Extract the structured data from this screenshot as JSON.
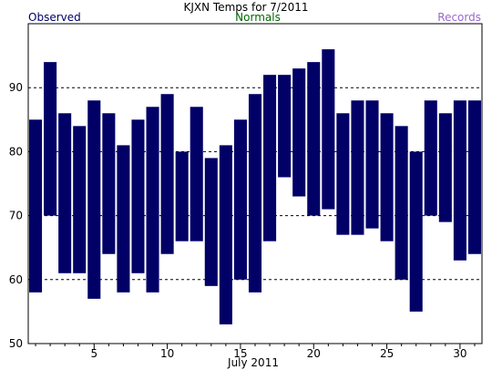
{
  "chart_data": {
    "type": "bar",
    "title": "KJXN Temps for 7/2011",
    "legend": {
      "observed": "Observed",
      "normals": "Normals",
      "records": "Records",
      "placement": "top"
    },
    "xlabel": "July 2011",
    "x_ticks": [
      5,
      10,
      15,
      20,
      25,
      30
    ],
    "y_ticks": [
      50,
      60,
      70,
      80,
      90
    ],
    "ylim": [
      50,
      100
    ],
    "xlim": [
      0.5,
      31.5
    ],
    "grid": "horizontal dashed",
    "days": [
      1,
      2,
      3,
      4,
      5,
      6,
      7,
      8,
      9,
      10,
      11,
      12,
      13,
      14,
      15,
      16,
      17,
      18,
      19,
      20,
      21,
      22,
      23,
      24,
      25,
      26,
      27,
      28,
      29,
      30,
      31
    ],
    "highs": [
      85,
      94,
      86,
      84,
      88,
      86,
      81,
      85,
      87,
      89,
      80,
      87,
      79,
      81,
      85,
      89,
      92,
      92,
      93,
      94,
      96,
      86,
      88,
      88,
      86,
      84,
      80,
      88,
      86,
      88,
      88
    ],
    "lows": [
      58,
      70,
      61,
      61,
      57,
      64,
      58,
      61,
      58,
      64,
      66,
      66,
      59,
      53,
      60,
      58,
      66,
      76,
      73,
      70,
      71,
      67,
      67,
      68,
      66,
      60,
      55,
      70,
      69,
      63,
      64
    ],
    "colors": {
      "bar": "#000066",
      "title": "#000000",
      "observed": "#000066",
      "normals": "#006600",
      "records": "#9966cc",
      "grid": "#000000"
    }
  }
}
